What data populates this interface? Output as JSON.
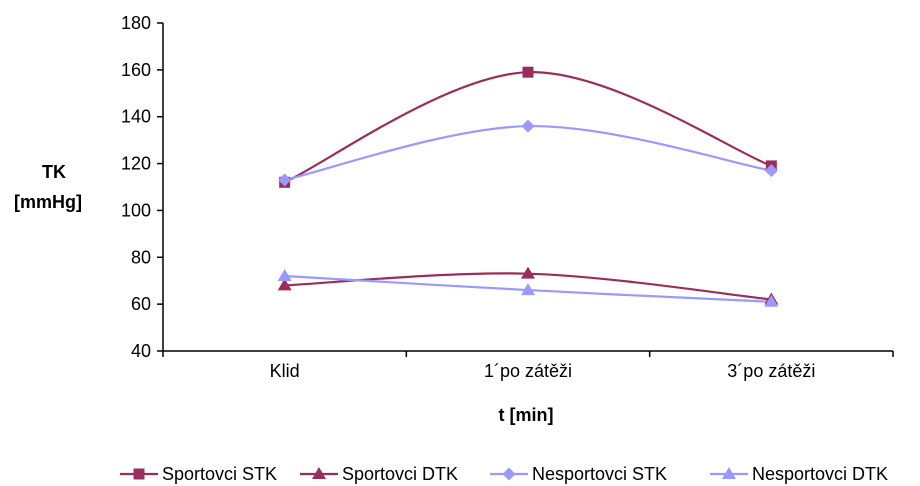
{
  "chart_data": {
    "type": "line",
    "categories": [
      "Klid",
      "1´po zátěži",
      "3´po zátěži"
    ],
    "series": [
      {
        "name": "Sportovci STK",
        "values": [
          112,
          159,
          119
        ],
        "color": "#9b2d5c",
        "marker": "square"
      },
      {
        "name": "Sportovci DTK",
        "values": [
          68,
          73,
          62
        ],
        "color": "#9b2d5c",
        "marker": "triangle"
      },
      {
        "name": "Nesportovci STK",
        "values": [
          113,
          136,
          117
        ],
        "color": "#9999ff",
        "marker": "diamond"
      },
      {
        "name": "Nesportovci DTK",
        "values": [
          72,
          66,
          61
        ],
        "color": "#9999ff",
        "marker": "triangle"
      }
    ],
    "ylabel_line1": "TK",
    "ylabel_line2": "[mmHg]",
    "xlabel": "t [min]",
    "ylim": [
      40,
      180
    ],
    "yticks": [
      40,
      60,
      80,
      100,
      120,
      140,
      160,
      180
    ],
    "grid": false,
    "legend_position": "bottom"
  }
}
